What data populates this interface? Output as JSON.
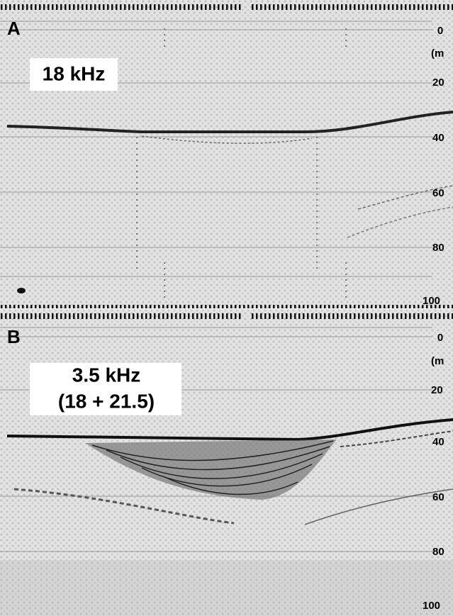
{
  "panels": [
    {
      "letter": "A",
      "label": "18 kHz",
      "unit": "(m",
      "depth_labels": [
        "0",
        "20",
        "40",
        "60",
        "80",
        "100"
      ]
    },
    {
      "letter": "B",
      "label": [
        "3.5 kHz",
        "(18 + 21.5)"
      ],
      "unit": "(m",
      "depth_labels": [
        "0",
        "20",
        "40",
        "60",
        "80",
        "100"
      ]
    }
  ]
}
